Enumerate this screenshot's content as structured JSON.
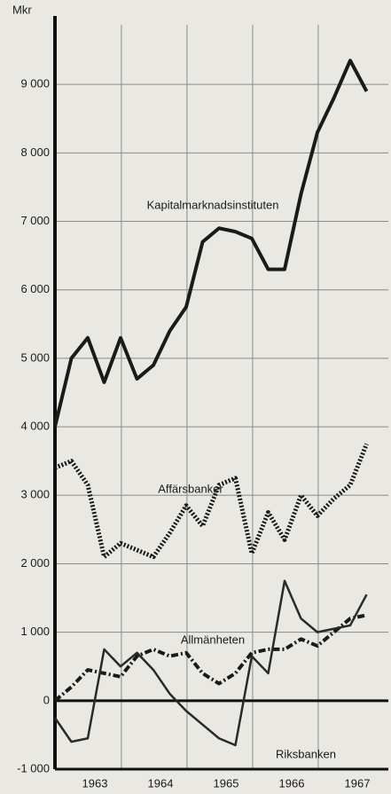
{
  "chart_data": {
    "type": "line",
    "y_unit_label": "Mkr",
    "categories": [
      null,
      null,
      "1963",
      null,
      null,
      null,
      "1964",
      null,
      null,
      null,
      "1965",
      null,
      null,
      null,
      "1966",
      null,
      null,
      null,
      "1967",
      null
    ],
    "series": [
      {
        "name": "Kapitalmarknadsinstituten",
        "color": "#1a1a1a",
        "style": "solid",
        "values": [
          4000,
          5000,
          5300,
          4650,
          5300,
          4700,
          4900,
          5400,
          5750,
          6700,
          6900,
          6850,
          6750,
          6300,
          6300,
          7400,
          8300,
          8800,
          9350,
          8900
        ]
      },
      {
        "name": "Affärsbanker",
        "color": "#1a1a1a",
        "style": "dotted",
        "values": [
          3400,
          3500,
          3150,
          2100,
          2300,
          2200,
          2100,
          2450,
          2850,
          2550,
          3150,
          3250,
          2150,
          2750,
          2350,
          3000,
          2700,
          2950,
          3150,
          3750
        ]
      },
      {
        "name": "Allmänheten",
        "color": "#1a1a1a",
        "style": "dashdot",
        "values": [
          0,
          200,
          450,
          400,
          350,
          650,
          750,
          650,
          700,
          400,
          250,
          400,
          700,
          750,
          750,
          900,
          800,
          1000,
          1200,
          1250
        ]
      },
      {
        "name": "Riksbanken",
        "color": "#2a2a2a",
        "style": "thin",
        "values": [
          -250,
          -600,
          -550,
          750,
          500,
          700,
          450,
          100,
          -150,
          -350,
          -550,
          -650,
          650,
          400,
          1750,
          1200,
          1000,
          1050,
          1100,
          1550
        ]
      }
    ],
    "ylim": [
      -1000,
      10000
    ],
    "yticks": [
      {
        "value": -1000,
        "label": "-1 000"
      },
      0,
      {
        "value": 1000,
        "label": "1 000"
      },
      {
        "value": 2000,
        "label": "2 000"
      },
      {
        "value": 3000,
        "label": "3 000"
      },
      {
        "value": 4000,
        "label": "4 000"
      },
      {
        "value": 5000,
        "label": "5 000"
      },
      {
        "value": 6000,
        "label": "6 000"
      },
      {
        "value": 7000,
        "label": "7 000"
      },
      {
        "value": 8000,
        "label": "8 000"
      },
      {
        "value": 9000,
        "label": "9 000"
      }
    ],
    "grid": true
  }
}
